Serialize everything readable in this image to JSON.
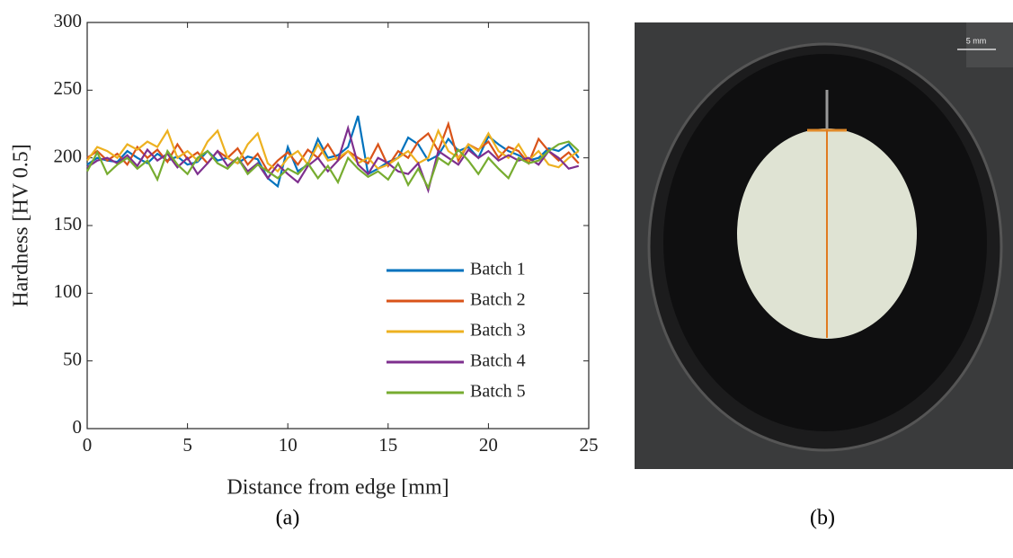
{
  "chart_data": {
    "type": "line",
    "x": [
      0,
      0.5,
      1,
      1.5,
      2,
      2.5,
      3,
      3.5,
      4,
      4.5,
      5,
      5.5,
      6,
      6.5,
      7,
      7.5,
      8,
      8.5,
      9,
      9.5,
      10,
      10.5,
      11,
      11.5,
      12,
      12.5,
      13,
      13.5,
      14,
      14.5,
      15,
      15.5,
      16,
      16.5,
      17,
      17.5,
      18,
      18.5,
      19,
      19.5,
      20,
      20.5,
      21,
      21.5,
      22,
      22.5,
      23,
      23.5,
      24,
      24.5
    ],
    "series": [
      {
        "name": "Batch 1",
        "color": "#0072bd",
        "values": [
          195,
          200,
          198,
          197,
          205,
          200,
          196,
          203,
          198,
          201,
          195,
          197,
          205,
          198,
          200,
          196,
          201,
          199,
          185,
          179,
          208,
          190,
          195,
          214,
          200,
          202,
          208,
          231,
          188,
          192,
          197,
          200,
          215,
          210,
          198,
          202,
          214,
          205,
          208,
          200,
          216,
          210,
          205,
          202,
          198,
          200,
          207,
          205,
          210,
          200
        ]
      },
      {
        "name": "Batch 2",
        "color": "#d95319",
        "values": [
          200,
          205,
          198,
          203,
          195,
          208,
          200,
          206,
          197,
          210,
          199,
          204,
          196,
          205,
          200,
          207,
          195,
          203,
          190,
          198,
          204,
          195,
          206,
          200,
          210,
          198,
          205,
          200,
          196,
          210,
          194,
          205,
          200,
          212,
          218,
          205,
          225,
          198,
          210,
          206,
          212,
          200,
          208,
          205,
          196,
          214,
          205,
          198,
          204,
          196
        ]
      },
      {
        "name": "Batch 3",
        "color": "#edb120",
        "values": [
          198,
          208,
          205,
          200,
          210,
          206,
          212,
          208,
          220,
          200,
          205,
          198,
          212,
          220,
          200,
          196,
          210,
          218,
          196,
          190,
          200,
          205,
          195,
          210,
          198,
          200,
          205,
          196,
          200,
          192,
          195,
          200,
          205,
          196,
          200,
          220,
          205,
          200,
          210,
          205,
          218,
          205,
          200,
          210,
          198,
          205,
          195,
          193,
          200,
          205
        ]
      },
      {
        "name": "Batch 4",
        "color": "#7e2f8e",
        "values": [
          193,
          198,
          200,
          196,
          202,
          194,
          206,
          198,
          203,
          193,
          200,
          188,
          196,
          205,
          194,
          200,
          190,
          196,
          185,
          195,
          188,
          182,
          194,
          200,
          190,
          198,
          222,
          195,
          188,
          200,
          196,
          190,
          188,
          196,
          176,
          205,
          200,
          195,
          206,
          200,
          205,
          198,
          202,
          198,
          200,
          195,
          205,
          200,
          192,
          194
        ]
      },
      {
        "name": "Batch 5",
        "color": "#77ac30",
        "values": [
          190,
          204,
          188,
          195,
          200,
          192,
          198,
          184,
          205,
          195,
          188,
          200,
          205,
          196,
          192,
          200,
          188,
          195,
          190,
          185,
          192,
          188,
          196,
          185,
          194,
          182,
          200,
          192,
          186,
          190,
          184,
          196,
          180,
          192,
          178,
          200,
          195,
          206,
          198,
          188,
          200,
          192,
          185,
          200,
          196,
          198,
          205,
          210,
          212,
          205
        ]
      }
    ],
    "x_label": "Distance from edge [mm]",
    "y_label": "Hardness [HV 0.5]",
    "xlim": [
      0,
      25
    ],
    "ylim": [
      0,
      300
    ],
    "xticks": [
      0,
      5,
      10,
      15,
      20,
      25
    ],
    "yticks": [
      0,
      50,
      100,
      150,
      200,
      250,
      300
    ],
    "legend": "lower right"
  },
  "photo": {
    "scale_label": "5 mm"
  },
  "captions": [
    "(a)",
    "(b)"
  ]
}
